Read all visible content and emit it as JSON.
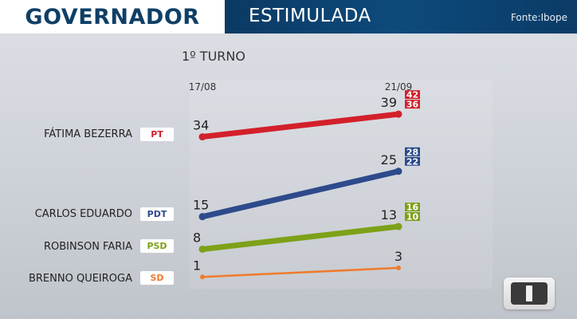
{
  "header": {
    "title": "GOVERNADOR",
    "subtitle": "ESTIMULADA",
    "source": "Fonte:Ibope"
  },
  "round_label": "1º TURNO",
  "chart_data": {
    "type": "line",
    "x": [
      "17/08",
      "21/09"
    ],
    "ylim": [
      0,
      45
    ],
    "series": [
      {
        "name": "FÁTIMA  BEZERRA",
        "party": "PT",
        "color": "#d3202b",
        "values": [
          34,
          39
        ],
        "margin_high": 42,
        "margin_low": 36
      },
      {
        "name": "CARLOS EDUARDO",
        "party": "PDT",
        "color": "#2d4a8c",
        "values": [
          15,
          25
        ],
        "margin_high": 28,
        "margin_low": 22
      },
      {
        "name": "ROBINSON FARIA",
        "party": "PSD",
        "color": "#7da118",
        "values": [
          8,
          13
        ],
        "margin_high": 16,
        "margin_low": 10
      },
      {
        "name": "BRENNO QUEIROGA",
        "party": "SD",
        "color": "#f07a2c",
        "values": [
          1,
          3
        ],
        "margin_high": null,
        "margin_low": null
      }
    ]
  },
  "logo": {
    "icon": "broadcaster-logo-icon"
  }
}
